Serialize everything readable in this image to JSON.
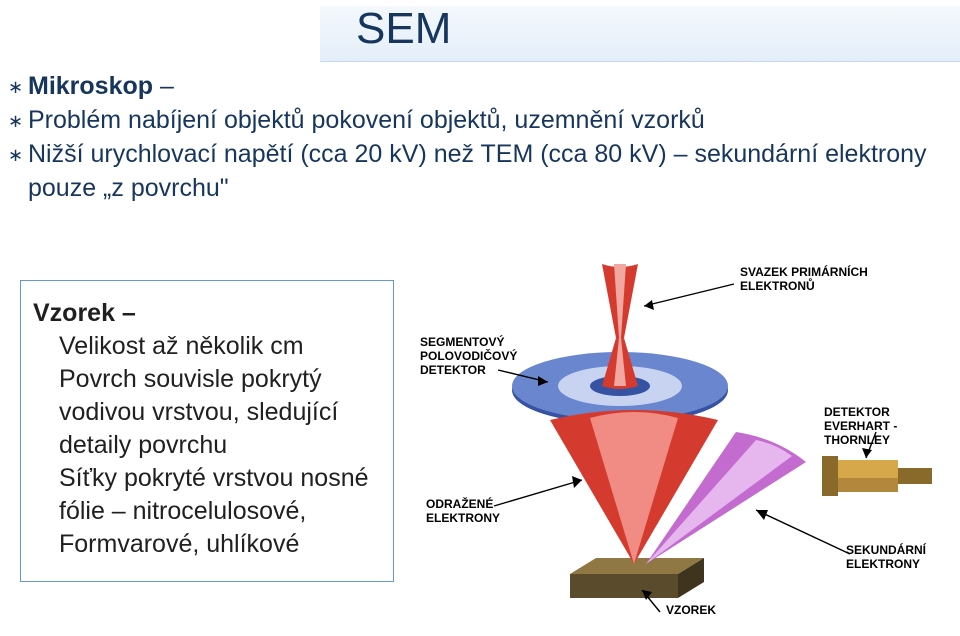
{
  "title": "SEM",
  "bullets": [
    {
      "bold": "Mikroskop",
      "rest": " –"
    },
    {
      "bold": "",
      "rest": "Problém nabíjení objektů pokovení objektů, uzemnění vzorků"
    },
    {
      "bold": "",
      "rest": "Nižší urychlovací napětí (cca 20 kV) než TEM (cca 80 kV) – sekundární elektrony pouze „z povrchu\""
    }
  ],
  "sample": {
    "heading": "Vzorek –",
    "lines": [
      "Velikost až několik cm",
      "Povrch souvisle pokrytý vodivou vrstvou, sledující detaily povrchu",
      "Síťky pokryté vrstvou nosné fólie – nitrocelulosové, Formvarové, uhlíkové"
    ]
  },
  "diagram": {
    "labels": {
      "primary": "SVAZEK PRIMÁRNÍCH\nELEKTRONŮ",
      "segment": "SEGMENTOVÝ\nPOLOVODIČOVÝ\nDETEKTOR",
      "bse": "ODRAŽENÉ\nELEKTRONY",
      "et": "DETEKTOR\nEVERHART - THORNLEY",
      "se": "SEKUNDÁRNÍ\nELEKTRONY",
      "sample": "VZOREK"
    },
    "colors": {
      "primary_beam_top": "#d43a2e",
      "primary_beam_highlight": "#f2a8a0",
      "disk_rim": "#3552a3",
      "disk_face": "#6a86ce",
      "disk_inner": "#c7d3f0",
      "bse_cone_outer": "#d43a2e",
      "bse_cone_highlight": "#f08c84",
      "se_cone": "#c36bcf",
      "se_cone_highlight": "#e6b6ee",
      "sample_top": "#8f7844",
      "sample_side": "#5a4b2c",
      "det_body": "#d6a84a",
      "det_body2": "#b4883c",
      "arrow": "#000000",
      "text": "#000000"
    }
  }
}
